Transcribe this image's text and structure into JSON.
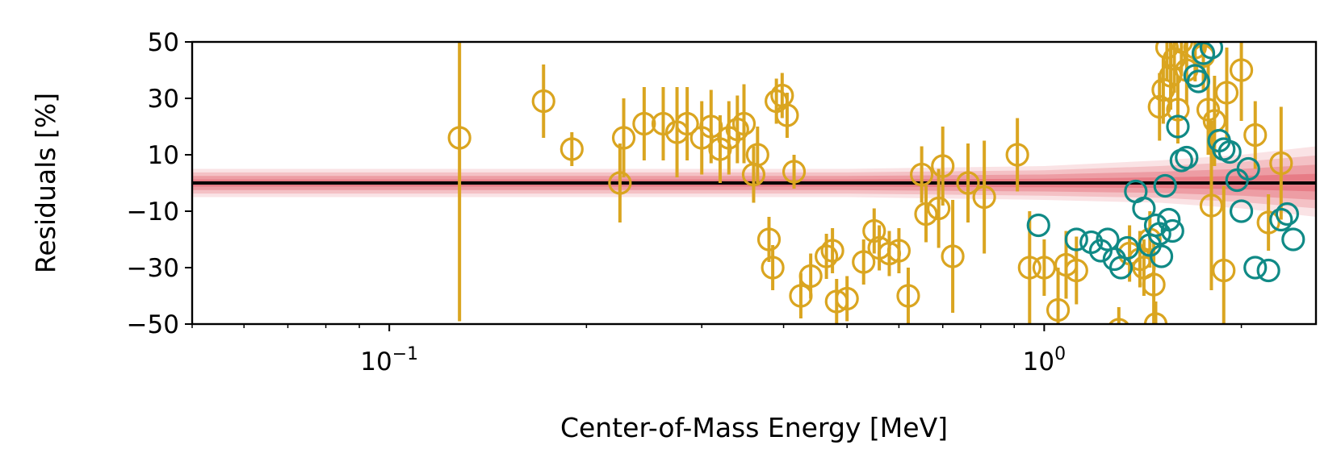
{
  "chart_data": {
    "type": "scatter",
    "title": "",
    "xlabel": "Center-of-Mass Energy [MeV]",
    "ylabel": "Residuals [%]",
    "xscale": "log",
    "xlim": [
      0.05,
      2.6
    ],
    "ylim": [
      -50,
      50
    ],
    "grid": false,
    "legend": "none",
    "y_ticks": [
      {
        "value": 50,
        "label": "50"
      },
      {
        "value": 30,
        "label": "30"
      },
      {
        "value": 10,
        "label": "10"
      },
      {
        "value": -10,
        "label": "−10"
      },
      {
        "value": -30,
        "label": "−30"
      },
      {
        "value": -50,
        "label": "−50"
      }
    ],
    "x_ticks": [
      {
        "value": 0.1,
        "base": "10",
        "exp": "−1"
      },
      {
        "value": 1,
        "base": "10",
        "exp": "0"
      }
    ],
    "reference_line": {
      "y": 0,
      "color": "#000000"
    },
    "band": {
      "color": "#d62738",
      "x": [
        0.05,
        0.2,
        0.5,
        1.0,
        1.5,
        2.0,
        2.6
      ],
      "lower": [
        -5,
        -5,
        -5,
        -6,
        -7,
        -9,
        -12
      ],
      "upper": [
        5,
        5,
        5,
        6,
        8,
        10,
        13
      ]
    },
    "series": [
      {
        "color": "#daa520",
        "marker": "open-circle",
        "points": [
          {
            "x": 0.128,
            "y": 16,
            "err": 65
          },
          {
            "x": 0.172,
            "y": 29,
            "err": 13
          },
          {
            "x": 0.19,
            "y": 12,
            "err": 6
          },
          {
            "x": 0.225,
            "y": 0,
            "err": 14
          },
          {
            "x": 0.228,
            "y": 16,
            "err": 14
          },
          {
            "x": 0.245,
            "y": 21,
            "err": 13
          },
          {
            "x": 0.262,
            "y": 21,
            "err": 13
          },
          {
            "x": 0.275,
            "y": 18,
            "err": 16
          },
          {
            "x": 0.285,
            "y": 21,
            "err": 13
          },
          {
            "x": 0.3,
            "y": 16,
            "err": 13
          },
          {
            "x": 0.31,
            "y": 20,
            "err": 13
          },
          {
            "x": 0.32,
            "y": 12,
            "err": 12
          },
          {
            "x": 0.33,
            "y": 16,
            "err": 13
          },
          {
            "x": 0.34,
            "y": 19,
            "err": 12
          },
          {
            "x": 0.348,
            "y": 21,
            "err": 14
          },
          {
            "x": 0.36,
            "y": 3,
            "err": 10
          },
          {
            "x": 0.365,
            "y": 10,
            "err": 10
          },
          {
            "x": 0.38,
            "y": -20,
            "err": 8
          },
          {
            "x": 0.385,
            "y": -30,
            "err": 8
          },
          {
            "x": 0.39,
            "y": 29,
            "err": 8
          },
          {
            "x": 0.398,
            "y": 31,
            "err": 8
          },
          {
            "x": 0.405,
            "y": 24,
            "err": 8
          },
          {
            "x": 0.415,
            "y": 4,
            "err": 6
          },
          {
            "x": 0.425,
            "y": -40,
            "err": 8
          },
          {
            "x": 0.44,
            "y": -33,
            "err": 8
          },
          {
            "x": 0.465,
            "y": -26,
            "err": 8
          },
          {
            "x": 0.475,
            "y": -24,
            "err": 8
          },
          {
            "x": 0.482,
            "y": -42,
            "err": 8
          },
          {
            "x": 0.5,
            "y": -41,
            "err": 8
          },
          {
            "x": 0.53,
            "y": -28,
            "err": 8
          },
          {
            "x": 0.55,
            "y": -17,
            "err": 8
          },
          {
            "x": 0.56,
            "y": -23,
            "err": 8
          },
          {
            "x": 0.58,
            "y": -25,
            "err": 8
          },
          {
            "x": 0.6,
            "y": -24,
            "err": 8
          },
          {
            "x": 0.62,
            "y": -40,
            "err": 10
          },
          {
            "x": 0.65,
            "y": 3,
            "err": 10
          },
          {
            "x": 0.66,
            "y": -11,
            "err": 10
          },
          {
            "x": 0.69,
            "y": -9,
            "err": 14
          },
          {
            "x": 0.7,
            "y": 6,
            "err": 14
          },
          {
            "x": 0.725,
            "y": -26,
            "err": 20
          },
          {
            "x": 0.765,
            "y": 0,
            "err": 14
          },
          {
            "x": 0.81,
            "y": -5,
            "err": 20
          },
          {
            "x": 0.91,
            "y": 10,
            "err": 13
          },
          {
            "x": 0.95,
            "y": -30,
            "err": 20
          },
          {
            "x": 1.0,
            "y": -30,
            "err": 10
          },
          {
            "x": 1.05,
            "y": -45,
            "err": 15
          },
          {
            "x": 1.08,
            "y": -29,
            "err": 12
          },
          {
            "x": 1.12,
            "y": -31,
            "err": 12
          },
          {
            "x": 1.3,
            "y": -52,
            "err": 8
          },
          {
            "x": 1.35,
            "y": -25,
            "err": 10
          },
          {
            "x": 1.4,
            "y": -27,
            "err": 10
          },
          {
            "x": 1.42,
            "y": -30,
            "err": 10
          },
          {
            "x": 1.45,
            "y": -20,
            "err": 10
          },
          {
            "x": 1.47,
            "y": -36,
            "err": 15
          },
          {
            "x": 1.48,
            "y": -50,
            "err": 8
          },
          {
            "x": 1.5,
            "y": 27,
            "err": 12
          },
          {
            "x": 1.52,
            "y": 33,
            "err": 12
          },
          {
            "x": 1.54,
            "y": 48,
            "err": 12
          },
          {
            "x": 1.56,
            "y": 38,
            "err": 12
          },
          {
            "x": 1.58,
            "y": 44,
            "err": 12
          },
          {
            "x": 1.6,
            "y": 26,
            "err": 12
          },
          {
            "x": 1.62,
            "y": 50,
            "err": 12
          },
          {
            "x": 1.65,
            "y": 40,
            "err": 12
          },
          {
            "x": 1.7,
            "y": 48,
            "err": 12
          },
          {
            "x": 1.75,
            "y": 45,
            "err": 12
          },
          {
            "x": 1.78,
            "y": 26,
            "err": 16
          },
          {
            "x": 1.8,
            "y": -8,
            "err": 30
          },
          {
            "x": 1.82,
            "y": 22,
            "err": 16
          },
          {
            "x": 1.88,
            "y": -31,
            "err": 30
          },
          {
            "x": 1.9,
            "y": 32,
            "err": 16
          },
          {
            "x": 2.0,
            "y": 40,
            "err": 18
          },
          {
            "x": 2.1,
            "y": 17,
            "err": 12
          },
          {
            "x": 2.2,
            "y": -14,
            "err": 10
          },
          {
            "x": 2.3,
            "y": 7,
            "err": 20
          }
        ]
      },
      {
        "color": "#108a86",
        "marker": "open-circle",
        "points": [
          {
            "x": 0.98,
            "y": -15,
            "err": 0
          },
          {
            "x": 1.12,
            "y": -20,
            "err": 0
          },
          {
            "x": 1.18,
            "y": -21,
            "err": 0
          },
          {
            "x": 1.22,
            "y": -24,
            "err": 0
          },
          {
            "x": 1.25,
            "y": -20,
            "err": 0
          },
          {
            "x": 1.28,
            "y": -27,
            "err": 0
          },
          {
            "x": 1.31,
            "y": -30,
            "err": 0
          },
          {
            "x": 1.34,
            "y": -23,
            "err": 0
          },
          {
            "x": 1.38,
            "y": -3,
            "err": 0
          },
          {
            "x": 1.42,
            "y": -9,
            "err": 0
          },
          {
            "x": 1.45,
            "y": -22,
            "err": 0
          },
          {
            "x": 1.48,
            "y": -15,
            "err": 0
          },
          {
            "x": 1.5,
            "y": -18,
            "err": 0
          },
          {
            "x": 1.51,
            "y": -26,
            "err": 0
          },
          {
            "x": 1.53,
            "y": -1,
            "err": 0
          },
          {
            "x": 1.55,
            "y": -13,
            "err": 0
          },
          {
            "x": 1.57,
            "y": -17,
            "err": 0
          },
          {
            "x": 1.6,
            "y": 20,
            "err": 0
          },
          {
            "x": 1.62,
            "y": 8,
            "err": 0
          },
          {
            "x": 1.65,
            "y": 9,
            "err": 0
          },
          {
            "x": 1.7,
            "y": 38,
            "err": 0
          },
          {
            "x": 1.72,
            "y": 36,
            "err": 0
          },
          {
            "x": 1.75,
            "y": 46,
            "err": 0
          },
          {
            "x": 1.8,
            "y": 48,
            "err": 0
          },
          {
            "x": 1.85,
            "y": 15,
            "err": 0
          },
          {
            "x": 1.88,
            "y": 12,
            "err": 0
          },
          {
            "x": 1.92,
            "y": 11,
            "err": 0
          },
          {
            "x": 1.97,
            "y": 1,
            "err": 0
          },
          {
            "x": 2.0,
            "y": -10,
            "err": 0
          },
          {
            "x": 2.05,
            "y": 5,
            "err": 0
          },
          {
            "x": 2.1,
            "y": -30,
            "err": 0
          },
          {
            "x": 2.2,
            "y": -31,
            "err": 0
          },
          {
            "x": 2.3,
            "y": -13,
            "err": 0
          },
          {
            "x": 2.35,
            "y": -11,
            "err": 0
          },
          {
            "x": 2.4,
            "y": -20,
            "err": 0
          }
        ]
      }
    ]
  }
}
